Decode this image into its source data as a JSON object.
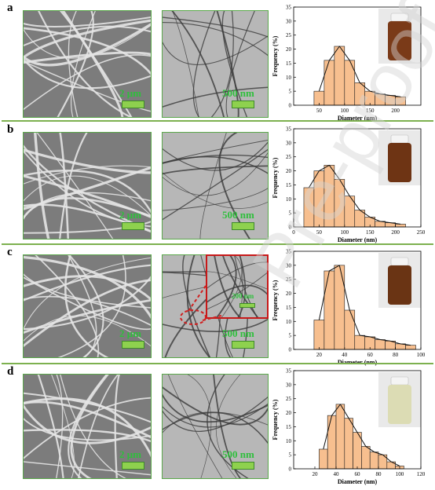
{
  "panels": [
    {
      "label": "a",
      "sem_scale": "2 μm",
      "tem_scale": "500 nm",
      "inset_scale": "",
      "vial_color": "#7a3a18",
      "chart": {
        "ymax": 35,
        "yticks": [
          0,
          5,
          10,
          15,
          20,
          25,
          30,
          35
        ],
        "xmin": 0,
        "xmax": 250,
        "xticks": [
          50,
          100,
          150,
          200
        ],
        "bin": 20,
        "xlabel": "Diameter (nm)",
        "ylabel": "Frequency (%)"
      }
    },
    {
      "label": "b",
      "sem_scale": "2 μm",
      "tem_scale": "500 nm",
      "inset_scale": "",
      "vial_color": "#6e3414",
      "chart": {
        "ymax": 35,
        "yticks": [
          0,
          5,
          10,
          15,
          20,
          25,
          30,
          35
        ],
        "xmin": 0,
        "xmax": 250,
        "xticks": [
          0,
          50,
          100,
          150,
          200,
          250
        ],
        "bin": 20,
        "xlabel": "Diameter (nm)",
        "ylabel": "Frequency (%)"
      }
    },
    {
      "label": "c",
      "sem_scale": "2 μm",
      "tem_scale": "500 nm",
      "inset_scale": "200 nm",
      "vial_color": "#6a3414",
      "chart": {
        "ymax": 35,
        "yticks": [
          0,
          5,
          10,
          15,
          20,
          25,
          30,
          35
        ],
        "xmin": 0,
        "xmax": 100,
        "xticks": [
          20,
          40,
          60,
          80,
          100
        ],
        "bin": 8,
        "xlabel": "Diameter (nm)",
        "ylabel": "Frequency (%)"
      }
    },
    {
      "label": "d",
      "sem_scale": "2 μm",
      "tem_scale": "500 nm",
      "inset_scale": "",
      "vial_color": "#dcdcb4",
      "chart": {
        "ymax": 35,
        "yticks": [
          0,
          5,
          10,
          15,
          20,
          25,
          30,
          35
        ],
        "xmin": 0,
        "xmax": 120,
        "xticks": [
          20,
          40,
          60,
          80,
          100,
          120
        ],
        "bin": 8,
        "xlabel": "Diameter (nm)",
        "ylabel": "Frequency (%)"
      }
    }
  ],
  "chart_data": [
    {
      "type": "bar",
      "x": [
        50,
        70,
        90,
        110,
        130,
        150,
        170,
        190,
        210
      ],
      "values": [
        5,
        16,
        21,
        16,
        8,
        5,
        4,
        3.5,
        3
      ],
      "xlabel": "Diameter (nm)",
      "ylabel": "Frequency (%)",
      "ylim": [
        0,
        35
      ],
      "fit_peak": 24
    },
    {
      "type": "bar",
      "x": [
        30,
        50,
        70,
        90,
        110,
        130,
        150,
        170,
        190,
        210
      ],
      "values": [
        14,
        20,
        22,
        17,
        11,
        6,
        3.5,
        2,
        1.5,
        1
      ],
      "xlabel": "Diameter (nm)",
      "ylabel": "Frequency (%)",
      "ylim": [
        0,
        35
      ],
      "fit_peak": 23
    },
    {
      "type": "bar",
      "x": [
        20,
        28,
        36,
        44,
        52,
        60,
        68,
        76,
        84,
        92
      ],
      "values": [
        10.5,
        28,
        30,
        14,
        5,
        4.5,
        3.5,
        3,
        2,
        1.5
      ],
      "xlabel": "Diameter (nm)",
      "ylabel": "Frequency (%)",
      "ylim": [
        0,
        35
      ],
      "fit_peak": 31
    },
    {
      "type": "bar",
      "x": [
        28,
        36,
        44,
        52,
        60,
        68,
        76,
        84,
        92,
        100
      ],
      "values": [
        7,
        19,
        23,
        18,
        13,
        8,
        6,
        5,
        2.5,
        1
      ],
      "xlabel": "Diameter (nm)",
      "ylabel": "Frequency (%)",
      "ylim": [
        0,
        35
      ],
      "fit_peak": 22
    }
  ]
}
